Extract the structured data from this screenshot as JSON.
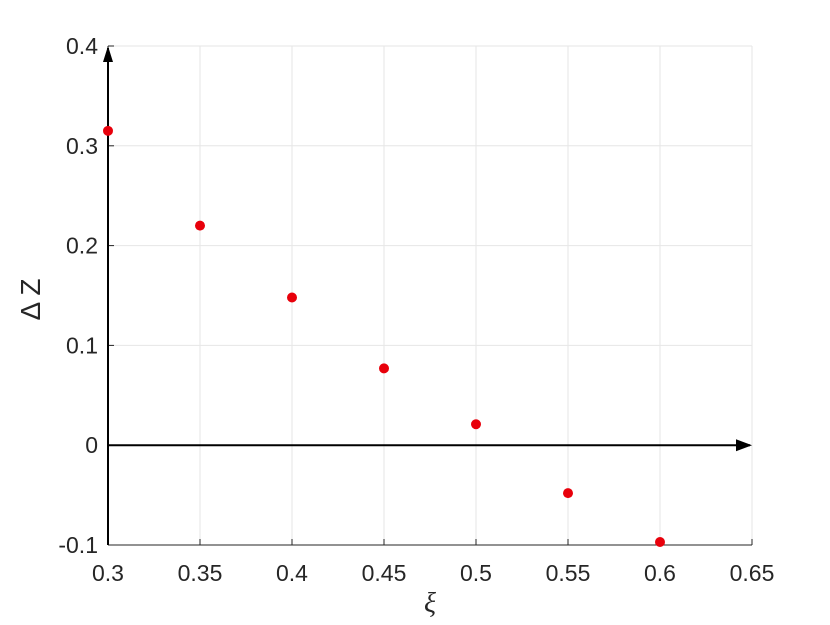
{
  "chart_data": {
    "type": "scatter",
    "title": "",
    "xlabel": "ξ",
    "ylabel": "Δ Z",
    "xlim": [
      0.3,
      0.65
    ],
    "ylim": [
      -0.1,
      0.4
    ],
    "xticks": [
      0.3,
      0.35,
      0.4,
      0.45,
      0.5,
      0.55,
      0.6,
      0.65
    ],
    "xtick_labels": [
      "0.3",
      "0.35",
      "0.4",
      "0.45",
      "0.5",
      "0.55",
      "0.6",
      "0.65"
    ],
    "yticks": [
      -0.1,
      0,
      0.1,
      0.2,
      0.3,
      0.4
    ],
    "ytick_labels": [
      "-0.1",
      "0",
      "0.1",
      "0.2",
      "0.3",
      "0.4"
    ],
    "grid": true,
    "series": [
      {
        "x": [
          0.3,
          0.35,
          0.4,
          0.45,
          0.5,
          0.55,
          0.6
        ],
        "y": [
          0.315,
          0.22,
          0.148,
          0.077,
          0.021,
          -0.048,
          -0.097
        ],
        "color": "#e8000b"
      }
    ],
    "colors": {
      "grid": "#e6e6e6",
      "axis": "#262626",
      "arrow": "#000000"
    }
  }
}
